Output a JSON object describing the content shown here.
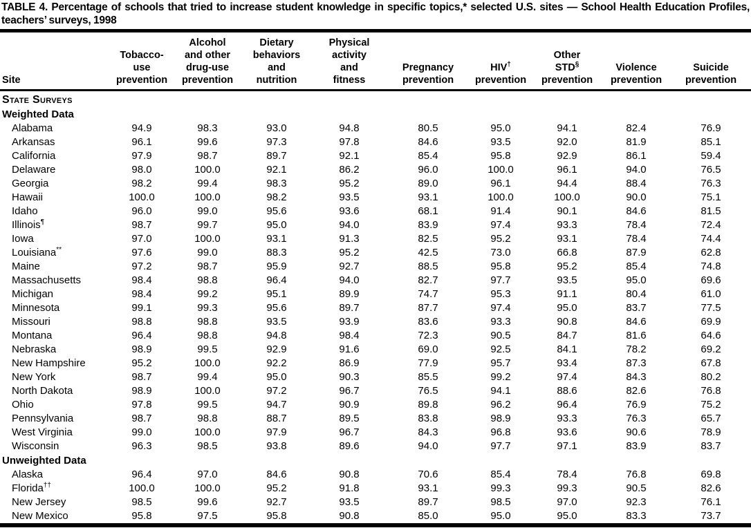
{
  "page": {
    "background_color": "#ffffff",
    "text_color": "#000000",
    "rule_color": "#000000"
  },
  "title": "TABLE 4. Percentage of schools that tried to increase student knowledge in specific topics,* selected U.S. sites — School Health Education Profiles, teachers’ surveys, 1998",
  "table": {
    "site_header": "Site",
    "columns": [
      {
        "id": "tobacco",
        "lines": [
          "Tobacco-",
          "use",
          "prevention"
        ],
        "sup": null,
        "sup_line": null
      },
      {
        "id": "alcohol",
        "lines": [
          "Alcohol",
          "and other",
          "drug-use",
          "prevention"
        ],
        "sup": null,
        "sup_line": null
      },
      {
        "id": "dietary",
        "lines": [
          "Dietary",
          "behaviors",
          "and",
          "nutrition"
        ],
        "sup": null,
        "sup_line": null
      },
      {
        "id": "physical",
        "lines": [
          "Physical",
          "activity",
          "and",
          "fitness"
        ],
        "sup": null,
        "sup_line": null
      },
      {
        "id": "pregnancy",
        "lines": [
          "Pregnancy",
          "prevention"
        ],
        "sup": null,
        "sup_line": null
      },
      {
        "id": "hiv",
        "lines": [
          "HIV",
          "prevention"
        ],
        "sup": "†",
        "sup_line": 0
      },
      {
        "id": "other-std",
        "lines": [
          "Other",
          "STD",
          "prevention"
        ],
        "sup": "§",
        "sup_line": 1
      },
      {
        "id": "violence",
        "lines": [
          "Violence",
          "prevention"
        ],
        "sup": null,
        "sup_line": null
      },
      {
        "id": "suicide",
        "lines": [
          "Suicide",
          "prevention"
        ],
        "sup": null,
        "sup_line": null
      }
    ],
    "rows": [
      {
        "type": "section",
        "label": "State Surveys"
      },
      {
        "type": "subsection",
        "label": "Weighted Data"
      },
      {
        "type": "data",
        "site": "Alabama",
        "sup": null,
        "values": [
          "94.9",
          "98.3",
          "93.0",
          "94.8",
          "80.5",
          "95.0",
          "94.1",
          "82.4",
          "76.9"
        ]
      },
      {
        "type": "data",
        "site": "Arkansas",
        "sup": null,
        "values": [
          "96.1",
          "99.6",
          "97.3",
          "97.8",
          "84.6",
          "93.5",
          "92.0",
          "81.9",
          "85.1"
        ]
      },
      {
        "type": "data",
        "site": "California",
        "sup": null,
        "values": [
          "97.9",
          "98.7",
          "89.7",
          "92.1",
          "85.4",
          "95.8",
          "92.9",
          "86.1",
          "59.4"
        ]
      },
      {
        "type": "data",
        "site": "Delaware",
        "sup": null,
        "values": [
          "98.0",
          "100.0",
          "92.1",
          "86.2",
          "96.0",
          "100.0",
          "96.1",
          "94.0",
          "76.5"
        ]
      },
      {
        "type": "data",
        "site": "Georgia",
        "sup": null,
        "values": [
          "98.2",
          "99.4",
          "98.3",
          "95.2",
          "89.0",
          "96.1",
          "94.4",
          "88.4",
          "76.3"
        ]
      },
      {
        "type": "data",
        "site": "Hawaii",
        "sup": null,
        "values": [
          "100.0",
          "100.0",
          "98.2",
          "93.5",
          "93.1",
          "100.0",
          "100.0",
          "90.0",
          "75.1"
        ]
      },
      {
        "type": "data",
        "site": "Idaho",
        "sup": null,
        "values": [
          "96.0",
          "99.0",
          "95.6",
          "93.6",
          "68.1",
          "91.4",
          "90.1",
          "84.6",
          "81.5"
        ]
      },
      {
        "type": "data",
        "site": "Illinois",
        "sup": "¶",
        "values": [
          "98.7",
          "99.7",
          "95.0",
          "94.0",
          "83.9",
          "97.4",
          "93.3",
          "78.4",
          "72.4"
        ]
      },
      {
        "type": "data",
        "site": "Iowa",
        "sup": null,
        "values": [
          "97.0",
          "100.0",
          "93.1",
          "91.3",
          "82.5",
          "95.2",
          "93.1",
          "78.4",
          "74.4"
        ]
      },
      {
        "type": "data",
        "site": "Louisiana",
        "sup": "**",
        "values": [
          "97.6",
          "99.0",
          "88.3",
          "95.2",
          "42.5",
          "73.0",
          "66.8",
          "87.9",
          "62.8"
        ]
      },
      {
        "type": "data",
        "site": "Maine",
        "sup": null,
        "values": [
          "97.2",
          "98.7",
          "95.9",
          "92.7",
          "88.5",
          "95.8",
          "95.2",
          "85.4",
          "74.8"
        ]
      },
      {
        "type": "data",
        "site": "Massachusetts",
        "sup": null,
        "values": [
          "98.4",
          "98.8",
          "96.4",
          "94.0",
          "82.7",
          "97.7",
          "93.5",
          "95.0",
          "69.6"
        ]
      },
      {
        "type": "data",
        "site": "Michigan",
        "sup": null,
        "values": [
          "98.4",
          "99.2",
          "95.1",
          "89.9",
          "74.7",
          "95.3",
          "91.1",
          "80.4",
          "61.0"
        ]
      },
      {
        "type": "data",
        "site": "Minnesota",
        "sup": null,
        "values": [
          "99.1",
          "99.3",
          "95.6",
          "89.7",
          "87.7",
          "97.4",
          "95.0",
          "83.7",
          "77.5"
        ]
      },
      {
        "type": "data",
        "site": "Missouri",
        "sup": null,
        "values": [
          "98.8",
          "98.8",
          "93.5",
          "93.9",
          "83.6",
          "93.3",
          "90.8",
          "84.6",
          "69.9"
        ]
      },
      {
        "type": "data",
        "site": "Montana",
        "sup": null,
        "values": [
          "96.4",
          "98.8",
          "94.8",
          "98.4",
          "72.3",
          "90.5",
          "84.7",
          "81.6",
          "64.6"
        ]
      },
      {
        "type": "data",
        "site": "Nebraska",
        "sup": null,
        "values": [
          "98.9",
          "99.5",
          "92.9",
          "91.6",
          "69.0",
          "92.5",
          "84.1",
          "78.2",
          "69.2"
        ]
      },
      {
        "type": "data",
        "site": "New Hampshire",
        "sup": null,
        "values": [
          "95.2",
          "100.0",
          "92.2",
          "86.9",
          "77.9",
          "95.7",
          "93.4",
          "87.3",
          "67.8"
        ]
      },
      {
        "type": "data",
        "site": "New York",
        "sup": null,
        "values": [
          "98.7",
          "99.4",
          "95.0",
          "90.3",
          "85.5",
          "99.2",
          "97.4",
          "84.3",
          "80.2"
        ]
      },
      {
        "type": "data",
        "site": "North Dakota",
        "sup": null,
        "values": [
          "98.9",
          "100.0",
          "97.2",
          "96.7",
          "76.5",
          "94.1",
          "88.6",
          "82.6",
          "76.8"
        ]
      },
      {
        "type": "data",
        "site": "Ohio",
        "sup": null,
        "values": [
          "97.8",
          "99.5",
          "94.7",
          "90.9",
          "89.8",
          "96.2",
          "96.4",
          "76.9",
          "75.2"
        ]
      },
      {
        "type": "data",
        "site": "Pennsylvania",
        "sup": null,
        "values": [
          "98.7",
          "98.8",
          "88.7",
          "89.5",
          "83.8",
          "98.9",
          "93.3",
          "76.3",
          "65.7"
        ]
      },
      {
        "type": "data",
        "site": "West Virginia",
        "sup": null,
        "values": [
          "99.0",
          "100.0",
          "97.9",
          "96.7",
          "84.3",
          "96.8",
          "93.6",
          "90.6",
          "78.9"
        ]
      },
      {
        "type": "data",
        "site": "Wisconsin",
        "sup": null,
        "values": [
          "96.3",
          "98.5",
          "93.8",
          "89.6",
          "94.0",
          "97.7",
          "97.1",
          "83.9",
          "83.7"
        ]
      },
      {
        "type": "subsection",
        "label": "Unweighted Data"
      },
      {
        "type": "data",
        "site": "Alaska",
        "sup": null,
        "values": [
          "96.4",
          "97.0",
          "84.6",
          "90.8",
          "70.6",
          "85.4",
          "78.4",
          "76.8",
          "69.8"
        ]
      },
      {
        "type": "data",
        "site": "Florida",
        "sup": "††",
        "values": [
          "100.0",
          "100.0",
          "95.2",
          "91.8",
          "93.1",
          "99.3",
          "99.3",
          "90.5",
          "82.6"
        ]
      },
      {
        "type": "data",
        "site": "New Jersey",
        "sup": null,
        "values": [
          "98.5",
          "99.6",
          "92.7",
          "93.5",
          "89.7",
          "98.5",
          "97.0",
          "92.3",
          "76.1"
        ]
      },
      {
        "type": "data",
        "site": "New Mexico",
        "sup": null,
        "values": [
          "95.8",
          "97.5",
          "95.8",
          "90.8",
          "85.0",
          "95.0",
          "95.0",
          "83.3",
          "73.7"
        ]
      }
    ]
  }
}
